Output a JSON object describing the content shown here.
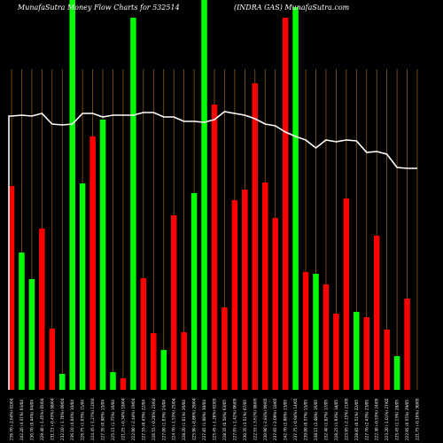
{
  "page": {
    "title_left": "MunafaSutra  Money Flow  Charts for 532514",
    "title_right": "(INDRA GAS) MunafaSutra.com"
  },
  "colors": {
    "background": "#000000",
    "up": "#00ff00",
    "down": "#ff0000",
    "gridline": "#a0651e",
    "line": "#ffffff"
  },
  "chart_data": {
    "type": "bar",
    "title": "MunafaSutra  Money Flow  Charts for 532514                (INDRA GAS) MunafaSutra.com",
    "ylim": [
      0,
      440
    ],
    "categories": [
      "236.70 (-2.64%) 02/04",
      "242.20 (4.31%) 03/04",
      "230.70 (0.44%) 04/04",
      "229.40 (-1.45%) 05/04",
      "231.15 (-0.43%) 08/04",
      "232.10 (-1.70%) 09/04",
      "236.10 (4.04%) 10/04",
      "226.75 (1.03%) 11/04",
      "224.45 (-1.27%) 12/04",
      "227.35 (0.98%) 15/04",
      "225.15 (1.75%) 16/04",
      "221.25 (-0.34%) 18/04",
      "222.00 (-2.44%) 19/04",
      "227.55 (0.43%) 22/04",
      "226.55 (-0.20%) 23/04",
      "227.00 (1.03%) 24/04",
      "224.70 (-1.53%) 25/04",
      "228.20 (1.01%) 26/04",
      "225.90 (-0.86%) 29/04",
      "227.85 (1.08%) 30/04",
      "225.45 (-1.28%) 02/05",
      "228.35 (0.58%) 03/05",
      "227.05 (-1.42%) 06/05",
      "230.35 (3.51%) 07/05",
      "222.55 (-3.61%) 08/05",
      "230.90 (-2.83%) 09/05",
      "237.65 (-2.09%) 10/05",
      "242.70 (2.08%) 13/05",
      "237.75 (-0.94%) 14/05",
      "239.00 (0.37%) 15/05",
      "238.15 (2.48%) 16/05",
      "232.40 (1.82%) 17/05",
      "228.25 (1.93%) 18/05",
      "223.95 (-2.15%) 21/05",
      "228.85 (0.51%) 22/05",
      "227.70 (2.43%) 23/05",
      "222.30 (-0.53%) 24/05",
      "223.20 (-1.01%) 27/05",
      "225.45 (1.13%) 28/05",
      "222.95 (0.55%) 29/05",
      "221.75 (-0.16%) 30/05"
    ],
    "series": [
      {
        "values": [
          230,
          155,
          125,
          182,
          69,
          18,
          440,
          233,
          286,
          305,
          20,
          13,
          420,
          126,
          64,
          45,
          197,
          65,
          222,
          440,
          322,
          93,
          214,
          226,
          346,
          234,
          194,
          420,
          432,
          133,
          131,
          119,
          86,
          216,
          88,
          82,
          174,
          68,
          38,
          103,
          0
        ],
        "directions": [
          "down",
          "up",
          "up",
          "down",
          "down",
          "up",
          "up",
          "up",
          "down",
          "up",
          "up",
          "down",
          "up",
          "down",
          "down",
          "up",
          "down",
          "down",
          "up",
          "up",
          "down",
          "down",
          "down",
          "down",
          "down",
          "down",
          "down",
          "down",
          "up",
          "down",
          "up",
          "down",
          "down",
          "down",
          "up",
          "down",
          "down",
          "down",
          "up",
          "down",
          "down"
        ]
      },
      {
        "values": [
          309,
          310,
          309,
          312,
          300,
          299,
          300,
          312,
          312,
          308,
          310,
          310,
          310,
          313,
          313,
          308,
          308,
          303,
          303,
          302,
          305,
          314,
          312,
          310,
          306,
          300,
          298,
          291,
          286,
          282,
          273,
          282,
          280,
          282,
          281,
          268,
          269,
          266,
          251,
          250,
          250
        ]
      }
    ]
  }
}
